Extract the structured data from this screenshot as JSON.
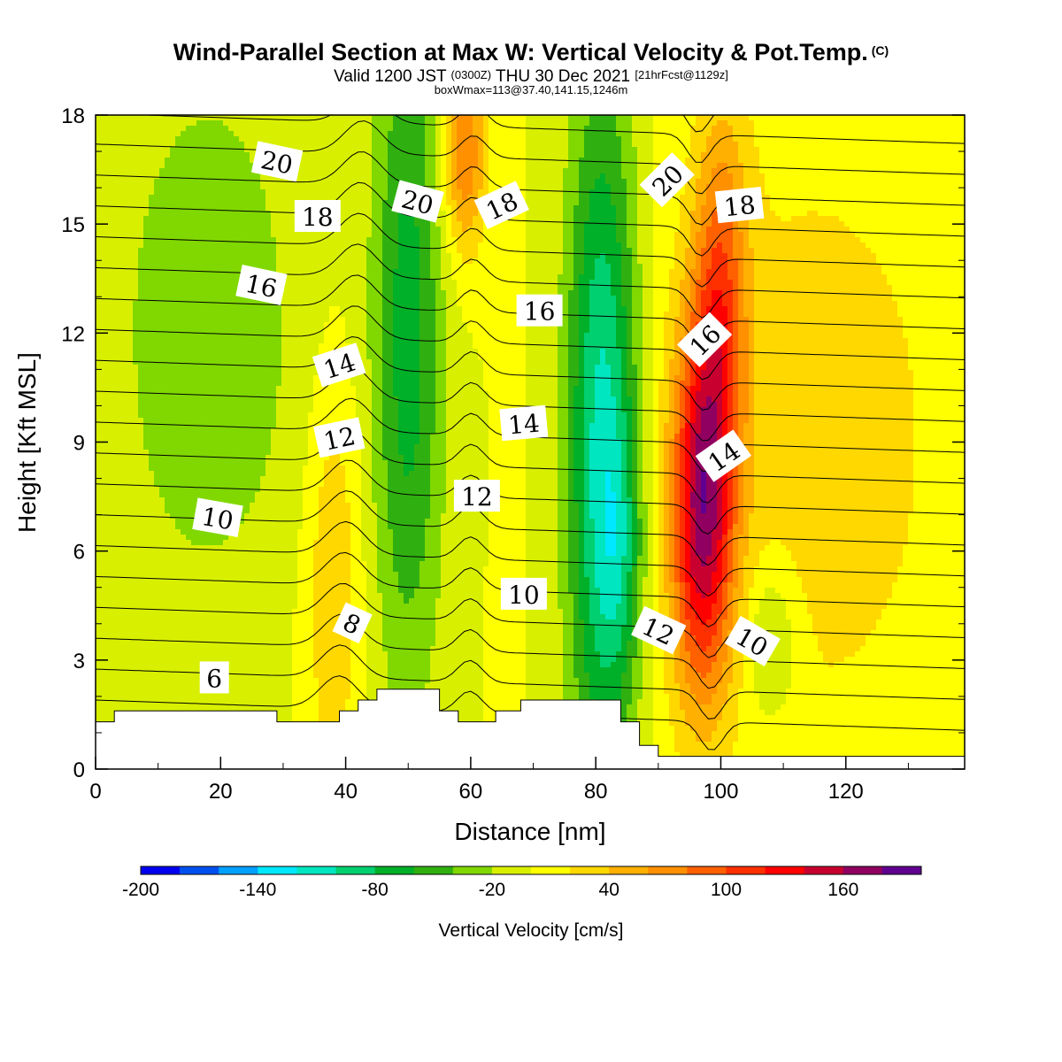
{
  "header": {
    "title": "Wind-Parallel Section at Max W: Vertical Velocity & Pot.Temp.",
    "copyright": "(C)",
    "valid_prefix": "Valid 1200 JST",
    "utc_time": "(0300Z)",
    "valid_date": "THU 30 Dec 2021",
    "forecast": "[21hrFcst@1129z]",
    "box_info": "boxWmax=113@37.40,141.15,1246m"
  },
  "colors": {
    "fill_bands": [
      "#0000f0",
      "#0050f0",
      "#00a0ff",
      "#00e8ff",
      "#00e6c0",
      "#00d070",
      "#00b028",
      "#30b010",
      "#80d800",
      "#d8f000",
      "#ffff00",
      "#ffd800",
      "#ffb000",
      "#ff9000",
      "#ff6000",
      "#ff3000",
      "#ff0000",
      "#c80030",
      "#900060",
      "#600090"
    ],
    "terrain": "#ffffff",
    "contour": "#000000"
  },
  "chart_data": {
    "type": "heatmap",
    "xlabel": "Distance [nm]",
    "ylabel": "Height [Kft MSL]",
    "xlim": [
      0,
      139
    ],
    "ylim": [
      0,
      18
    ],
    "x_ticks": [
      0,
      20,
      40,
      60,
      80,
      100,
      120
    ],
    "y_ticks": [
      0,
      3,
      6,
      9,
      12,
      15,
      18
    ],
    "colorbar": {
      "title": "Vertical Velocity [cm/s]",
      "min": -200,
      "max": 200,
      "step": 20,
      "tick_labels": [
        "-200",
        "-140",
        "-80",
        "-20",
        "40",
        "100",
        "160"
      ],
      "tick_values": [
        -200,
        -140,
        -80,
        -20,
        40,
        100,
        160
      ]
    },
    "terrain_profile": [
      [
        0,
        1.3
      ],
      [
        3,
        1.3
      ],
      [
        3,
        1.6
      ],
      [
        29,
        1.6
      ],
      [
        29,
        1.3
      ],
      [
        39,
        1.3
      ],
      [
        39,
        1.6
      ],
      [
        42,
        1.6
      ],
      [
        42,
        1.9
      ],
      [
        45,
        1.9
      ],
      [
        45,
        2.2
      ],
      [
        55,
        2.2
      ],
      [
        55,
        1.6
      ],
      [
        58,
        1.6
      ],
      [
        58,
        1.3
      ],
      [
        64,
        1.3
      ],
      [
        64,
        1.6
      ],
      [
        68,
        1.6
      ],
      [
        68,
        1.9
      ],
      [
        84,
        1.9
      ],
      [
        84,
        1.3
      ],
      [
        87,
        1.3
      ],
      [
        87,
        0.65
      ],
      [
        90,
        0.65
      ],
      [
        90,
        0.35
      ],
      [
        139,
        0.35
      ]
    ],
    "vertical_velocity_features": [
      {
        "kind": "downdraft",
        "x": 50,
        "y": 12,
        "sx": 4,
        "sy": 7,
        "value": -70
      },
      {
        "kind": "downdraft",
        "x": 81,
        "y": 9,
        "sx": 4,
        "sy": 7,
        "value": -110
      },
      {
        "kind": "downdraft",
        "x": 84,
        "y": 6,
        "sx": 2.5,
        "sy": 2.5,
        "value": -40
      },
      {
        "kind": "downdraft",
        "x": 18,
        "y": 12,
        "sx": 10,
        "sy": 5,
        "value": -40
      },
      {
        "kind": "downdraft",
        "x": 108,
        "y": 3.5,
        "sx": 3,
        "sy": 1.5,
        "value": -40
      },
      {
        "kind": "updraft",
        "x": 97,
        "y": 7,
        "sx": 3.5,
        "sy": 3.5,
        "value": 150
      },
      {
        "kind": "updraft",
        "x": 100,
        "y": 13,
        "sx": 3,
        "sy": 3.5,
        "value": 80
      },
      {
        "kind": "updraft",
        "x": 38,
        "y": 5,
        "sx": 3,
        "sy": 4,
        "value": 40
      },
      {
        "kind": "updraft",
        "x": 59,
        "y": 17,
        "sx": 2.5,
        "sy": 2,
        "value": 80
      },
      {
        "kind": "updraft",
        "x": 115,
        "y": 9,
        "sx": 18,
        "sy": 7,
        "value": 30
      }
    ],
    "potential_temperature_labels": [
      {
        "text": "20",
        "x": 29,
        "y": 16.7,
        "angle": 12
      },
      {
        "text": "18",
        "x": 35.5,
        "y": 15.2,
        "angle": 0
      },
      {
        "text": "20",
        "x": 51.5,
        "y": 15.6,
        "angle": 15
      },
      {
        "text": "18",
        "x": 65,
        "y": 15.5,
        "angle": -25
      },
      {
        "text": "20",
        "x": 91.5,
        "y": 16.2,
        "angle": -45
      },
      {
        "text": "18",
        "x": 103,
        "y": 15.5,
        "angle": -6
      },
      {
        "text": "16",
        "x": 26.5,
        "y": 13.3,
        "angle": 12
      },
      {
        "text": "16",
        "x": 71,
        "y": 12.6,
        "angle": 0
      },
      {
        "text": "16",
        "x": 97.5,
        "y": 11.8,
        "angle": -45
      },
      {
        "text": "14",
        "x": 39,
        "y": 11.1,
        "angle": -18
      },
      {
        "text": "14",
        "x": 68.5,
        "y": 9.5,
        "angle": -5
      },
      {
        "text": "14",
        "x": 100.5,
        "y": 8.6,
        "angle": -35
      },
      {
        "text": "12",
        "x": 39,
        "y": 9.1,
        "angle": -12
      },
      {
        "text": "12",
        "x": 61,
        "y": 7.5,
        "angle": 0
      },
      {
        "text": "12",
        "x": 90,
        "y": 3.8,
        "angle": 25
      },
      {
        "text": "10",
        "x": 19.5,
        "y": 6.9,
        "angle": 10
      },
      {
        "text": "10",
        "x": 68.5,
        "y": 4.8,
        "angle": 0
      },
      {
        "text": "10",
        "x": 105,
        "y": 3.5,
        "angle": 30
      },
      {
        "text": "8",
        "x": 41,
        "y": 4,
        "angle": 25
      },
      {
        "text": "6",
        "x": 19,
        "y": 2.5,
        "angle": 0
      }
    ]
  }
}
